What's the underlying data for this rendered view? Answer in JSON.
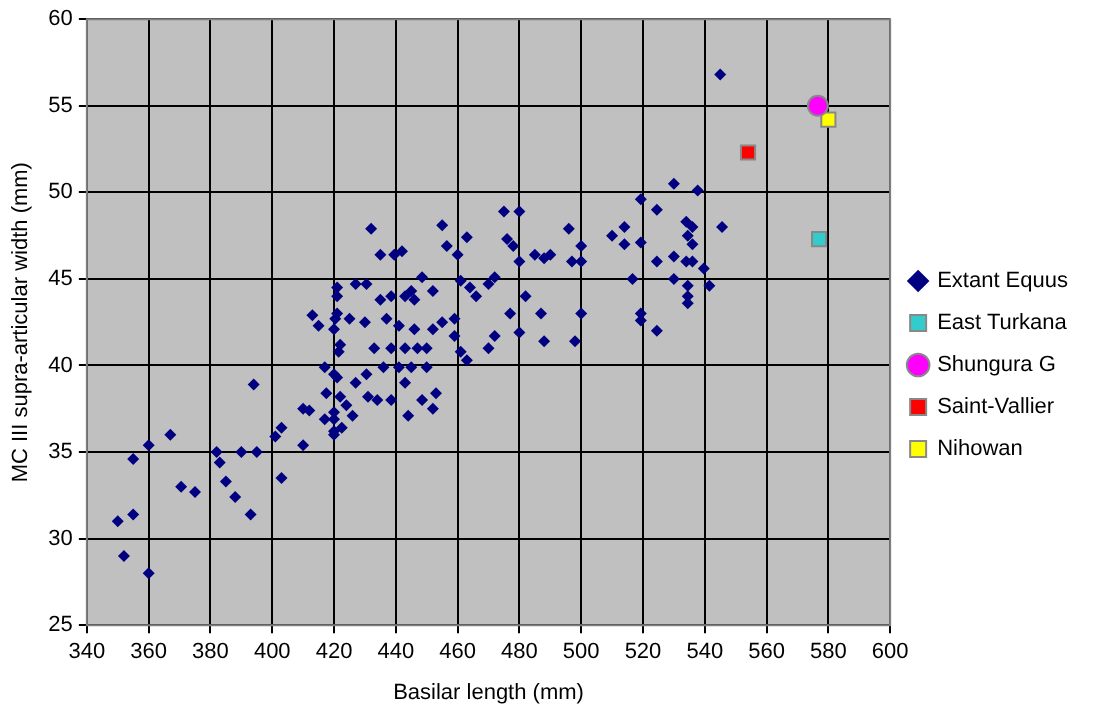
{
  "chart_data": {
    "type": "scatter",
    "xlabel": "Basilar length (mm)",
    "ylabel": "MC III supra-articular width (mm)",
    "xlim": [
      340,
      600
    ],
    "xticks": [
      340,
      360,
      380,
      400,
      420,
      440,
      460,
      480,
      500,
      520,
      540,
      560,
      580,
      600
    ],
    "ylim": [
      25,
      60
    ],
    "yticks": [
      25,
      30,
      35,
      40,
      45,
      50,
      55,
      60
    ],
    "grid": true,
    "legend": "right",
    "series": [
      {
        "name": "Extant Equus",
        "color": "#000080",
        "marker": "diamond",
        "x": [
          350,
          352,
          355,
          355,
          360,
          360,
          367,
          370.5,
          375,
          382,
          383,
          385,
          388,
          390,
          393,
          394,
          395,
          401,
          403,
          403,
          410,
          410,
          412,
          413,
          415,
          417,
          417,
          417.5,
          420,
          420,
          420,
          421,
          421,
          422,
          422,
          420,
          421,
          420.4,
          421.5,
          421,
          420,
          420,
          424,
          427,
          430.5,
          425,
          430,
          432,
          435,
          435,
          437,
          438.5,
          439.5,
          442,
          443,
          445,
          446,
          448.5,
          452,
          455,
          456.5,
          460,
          463,
          461,
          464,
          466,
          470,
          472,
          475,
          480,
          476,
          478,
          480,
          482,
          485,
          488,
          490,
          496,
          497,
          500,
          500,
          500,
          498,
          488,
          487,
          480,
          477,
          472,
          470,
          463,
          461,
          459,
          459,
          455,
          452,
          450,
          447,
          443,
          438.5,
          433,
          441,
          446,
          450,
          445,
          441,
          436,
          430.5,
          427,
          431,
          434,
          438.5,
          443,
          444,
          448.5,
          452,
          453,
          426,
          422.5,
          545,
          530,
          537.7,
          519.3,
          524.5,
          514,
          510,
          514,
          519.3,
          534,
          536,
          534.5,
          536,
          545.6,
          524.5,
          530,
          534,
          536,
          539.7,
          516.6,
          530,
          534.5,
          541.5,
          534.5,
          534.5,
          519.3,
          519.3,
          524.5
        ],
        "values": [
          31,
          29,
          31.4,
          34.6,
          35.4,
          28,
          36,
          33,
          32.7,
          35,
          34.4,
          33.3,
          32.4,
          35,
          31.4,
          38.9,
          35,
          35.9,
          36.4,
          33.5,
          35.4,
          37.5,
          37.4,
          42.9,
          42.3,
          36.9,
          39.9,
          38.4,
          36.9,
          39.5,
          42.1,
          44.5,
          43,
          41.2,
          38.2,
          36,
          44,
          42.7,
          40.8,
          39.3,
          37.3,
          36.2,
          37.7,
          44.7,
          44.7,
          42.7,
          42.5,
          47.9,
          46.4,
          43.8,
          42.7,
          44,
          46.4,
          46.6,
          44,
          44.3,
          43.8,
          45.1,
          44.3,
          48.1,
          46.9,
          46.4,
          47.4,
          44.9,
          44.5,
          44,
          44.7,
          45.1,
          48.9,
          48.9,
          47.3,
          46.9,
          46,
          44,
          46.4,
          46.2,
          46.4,
          47.9,
          46,
          46.9,
          46,
          43,
          41.4,
          41.4,
          43,
          41.9,
          43,
          41.7,
          41,
          40.3,
          40.8,
          41.7,
          42.7,
          42.5,
          42.1,
          41,
          41,
          41,
          41,
          41,
          42.3,
          42.1,
          39.9,
          39.9,
          39.9,
          39.9,
          39.5,
          39,
          38.2,
          38,
          38,
          39,
          37.1,
          38,
          37.5,
          38.4,
          37.1,
          36.4,
          56.8,
          50.5,
          50.1,
          49.6,
          49,
          48,
          47.5,
          47,
          47.1,
          48.3,
          48,
          47.5,
          47,
          48,
          46,
          46.3,
          46,
          46,
          45.6,
          45,
          45,
          44.6,
          44.6,
          44,
          43.6,
          43,
          42.6,
          42
        ]
      },
      {
        "name": "East Turkana",
        "color": "#33cccc",
        "marker": "square",
        "x": [
          577
        ],
        "values": [
          47.3
        ]
      },
      {
        "name": "Shungura G",
        "color": "#ff00ff",
        "marker": "circle",
        "x": [
          576.6
        ],
        "values": [
          55
        ]
      },
      {
        "name": "Saint-Vallier",
        "color": "#ff0000",
        "marker": "square",
        "x": [
          554
        ],
        "values": [
          52.3
        ]
      },
      {
        "name": "Nihowan",
        "color": "#ffff00",
        "marker": "square",
        "x": [
          580
        ],
        "values": [
          54.2
        ]
      }
    ]
  }
}
